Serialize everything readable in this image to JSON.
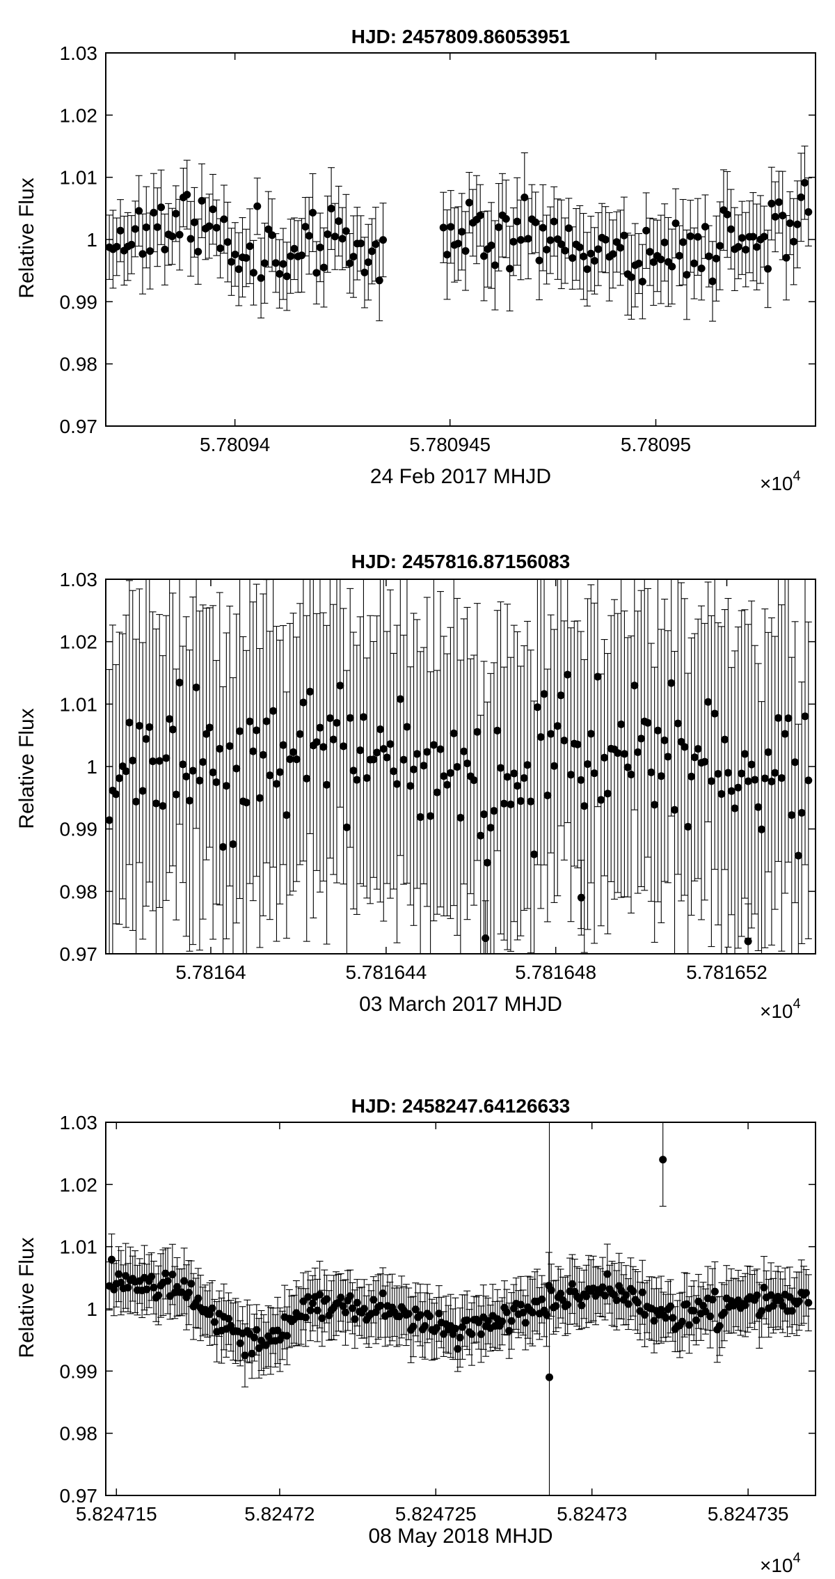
{
  "chart_data": [
    {
      "type": "scatter",
      "title": "HJD: 2457809.86053951",
      "ylabel": "Relative Flux",
      "xlabel": "24 Feb 2017 MHJD",
      "x_multiplier": "×10",
      "x_multiplier_exp": "4",
      "ylim": [
        0.97,
        1.03
      ],
      "yticks": [
        "1.03",
        "1.02",
        "1.01",
        "1",
        "0.99",
        "0.98",
        "0.97"
      ],
      "xticks": [
        "5.78094",
        "5.780945",
        "5.78095"
      ],
      "grid": false,
      "error_bars": true,
      "seed": 11,
      "segments": [
        {
          "n": 75,
          "mean": [
            0.9995,
            1.0035,
            1.0005,
            0.9985,
            0.9985,
            0.999
          ],
          "noise": 0.0027,
          "err": 0.0055
        },
        {
          "gap": true
        },
        {
          "n": 100,
          "mean": [
            1.001,
            1.002,
            1.0,
            0.9975,
            0.9985,
            1.001,
            1.005
          ],
          "noise": 0.0028,
          "err": 0.006
        }
      ],
      "gap_fraction": 0.085,
      "outliers": []
    },
    {
      "type": "scatter",
      "title": "HJD: 2457816.87156083",
      "ylabel": "Relative Flux",
      "xlabel": "03 March 2017 MHJD",
      "x_multiplier": "×10",
      "x_multiplier_exp": "4",
      "ylim": [
        0.97,
        1.03
      ],
      "yticks": [
        "1.03",
        "1.02",
        "1.01",
        "1",
        "0.99",
        "0.98",
        "0.97"
      ],
      "xticks": [
        "5.78164",
        "5.781644",
        "5.781648",
        "5.781652"
      ],
      "grid": false,
      "error_bars": true,
      "seed": 23,
      "segments": [
        {
          "n": 210,
          "mean": [
            0.9975,
            1.001,
            1.002,
            0.999,
            0.9985,
            1.0035,
            1.0,
            1.0005
          ],
          "noise": 0.0055,
          "err": 0.0235
        }
      ],
      "gap_fraction": 0,
      "outliers": [
        {
          "f": 0.535,
          "y": 0.9725
        },
        {
          "f": 0.67,
          "y": 0.979
        },
        {
          "f": 0.905,
          "y": 0.972
        }
      ]
    },
    {
      "type": "scatter",
      "title": "HJD: 2458247.64126633",
      "ylabel": "Relative Flux",
      "xlabel": "08 May 2018 MHJD",
      "x_multiplier": "×10",
      "x_multiplier_exp": "4",
      "ylim": [
        0.97,
        1.03
      ],
      "yticks": [
        "1.03",
        "1.02",
        "1.01",
        "1",
        "0.99",
        "0.98",
        "0.97"
      ],
      "xticks": [
        "5.824715",
        "5.82472",
        "5.824725",
        "5.82473",
        "5.824735"
      ],
      "grid": false,
      "error_bars": true,
      "seed": 37,
      "segments": [
        {
          "n": 300,
          "mean": [
            1.005,
            1.004,
            0.994,
            1.0005,
            1.0,
            0.996,
            1.0,
            1.003,
            0.999,
            1.001,
            1.0015
          ],
          "noise": 0.0012,
          "err": 0.0045
        }
      ],
      "gap_fraction": 0,
      "outliers": [
        {
          "f": 0.625,
          "y": 0.989,
          "err": 0.045
        },
        {
          "f": 0.785,
          "y": 1.024,
          "err": 0.0075
        }
      ]
    }
  ]
}
